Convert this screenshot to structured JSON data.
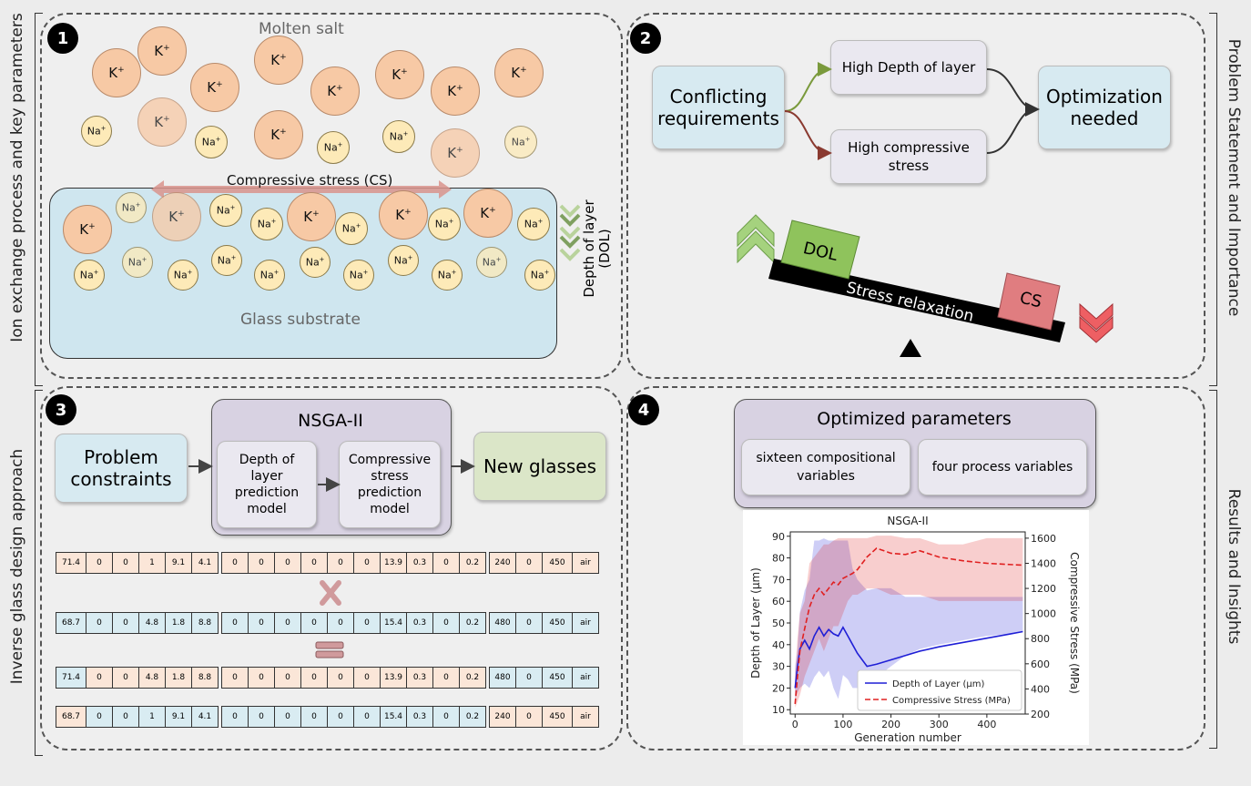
{
  "panel1": {
    "badge": "1",
    "molten_salt": "Molten salt",
    "compressive_stress": "Compressive stress (CS)",
    "glass_substrate": "Glass substrate",
    "dol_label": "Depth of layer (DOL)",
    "k_ion": "K",
    "na_ion": "Na",
    "ion_charge": "+"
  },
  "side_labels": {
    "left_top": "Ion exchange process and key parameters",
    "left_bottom": "Inverse glass design approach",
    "right_top": "Problem Statement and Importance",
    "right_bottom": "Results and Insights"
  },
  "panel2": {
    "badge": "2",
    "conflicting": "Conflicting requirements",
    "high_dol": "High Depth of layer",
    "high_cs": "High compressive stress",
    "optimization": "Optimization needed",
    "dol_block": "DOL",
    "cs_block": "CS",
    "stress_relaxation": "Stress relaxation",
    "colors": {
      "dol_block": "#8fc35c",
      "cs_block": "#e07d80",
      "up_arrow": "#a5d27e",
      "down_arrow": "#ee5f63"
    }
  },
  "panel3": {
    "badge": "3",
    "problem_constraints": "Problem constraints",
    "nsga_title": "NSGA-II",
    "dol_model": "Depth of layer prediction model",
    "cs_model": "Compressive stress prediction model",
    "new_glasses": "New glasses",
    "rows": [
      {
        "colors": "oooooo/oooooooooo/oooo",
        "values": [
          "71.4",
          "0",
          "0",
          "1",
          "9.1",
          "4.1",
          "0",
          "0",
          "0",
          "0",
          "0",
          "0",
          "13.9",
          "0.3",
          "0",
          "0.2",
          "240",
          "0",
          "450",
          "air"
        ]
      },
      {
        "colors": "bbbbbb/bbbbbbbbbb/bbbb",
        "values": [
          "68.7",
          "0",
          "0",
          "4.8",
          "1.8",
          "8.8",
          "0",
          "0",
          "0",
          "0",
          "0",
          "0",
          "15.4",
          "0.3",
          "0",
          "0.2",
          "480",
          "0",
          "450",
          "air"
        ]
      },
      {
        "colors": "oooooo/oooooooooo/bbbb",
        "values": [
          "71.4",
          "0",
          "0",
          "4.8",
          "1.8",
          "8.8",
          "0",
          "0",
          "0",
          "0",
          "0",
          "0",
          "13.9",
          "0.3",
          "0",
          "0.2",
          "480",
          "0",
          "450",
          "air"
        ]
      },
      {
        "colors": "bbbbbb/bbbbbbbbbb/oooo",
        "values": [
          "68.7",
          "0",
          "0",
          "1",
          "9.1",
          "4.1",
          "0",
          "0",
          "0",
          "0",
          "0",
          "0",
          "15.4",
          "0.3",
          "0",
          "0.2",
          "240",
          "0",
          "450",
          "air"
        ]
      }
    ],
    "row_color_blocks": [
      [
        "o",
        "o",
        "o",
        "o"
      ],
      [
        "b",
        "b",
        "b",
        "b"
      ],
      [
        "b",
        "o",
        "o",
        "b"
      ],
      [
        "o",
        "b",
        "b",
        "o"
      ]
    ]
  },
  "panel4": {
    "badge": "4",
    "optimized_params": "Optimized parameters",
    "compositional": "sixteen compositional variables",
    "process": "four process variables"
  },
  "chart_data": {
    "type": "line",
    "title": "NSGA-II",
    "xlabel": "Generation number",
    "ylabel": "Depth of Layer (μm)",
    "y2label": "Compressive Stress (MPa)",
    "xlim": [
      -10,
      480
    ],
    "ylim": [
      8,
      92
    ],
    "y2lim": [
      200,
      1650
    ],
    "xticks": [
      0,
      100,
      200,
      300,
      400
    ],
    "yticks": [
      10,
      20,
      30,
      40,
      50,
      60,
      70,
      80,
      90
    ],
    "y2ticks": [
      200,
      400,
      600,
      800,
      1000,
      1200,
      1400,
      1600
    ],
    "legend": [
      "Depth of Layer (μm)",
      "Compressive Stress (MPa)"
    ],
    "legend_position": "lower-right",
    "series": [
      {
        "name": "Depth of Layer (μm)",
        "color": "#1f1fd6",
        "axis": "left",
        "x": [
          0,
          5,
          10,
          20,
          30,
          40,
          50,
          60,
          70,
          80,
          90,
          100,
          110,
          120,
          130,
          150,
          170,
          200,
          230,
          260,
          300,
          350,
          400,
          450,
          475
        ],
        "y": [
          20,
          30,
          38,
          42,
          38,
          44,
          48,
          44,
          47,
          45,
          44,
          48,
          44,
          40,
          36,
          30,
          31,
          33,
          35,
          37,
          39,
          41,
          43,
          45,
          46
        ],
        "band_low": [
          15,
          18,
          20,
          22,
          20,
          25,
          28,
          25,
          28,
          20,
          15,
          26,
          24,
          20,
          20,
          20,
          25,
          30,
          35,
          38,
          40,
          42,
          44,
          45,
          46
        ],
        "band_high": [
          30,
          38,
          55,
          65,
          70,
          88,
          88,
          89,
          88,
          88,
          88,
          88,
          88,
          75,
          70,
          65,
          66,
          66,
          62,
          62,
          62,
          62,
          62,
          62,
          62
        ]
      },
      {
        "name": "Compressive Stress (MPa)",
        "color": "#e02020",
        "axis": "right",
        "x": [
          0,
          5,
          10,
          20,
          30,
          40,
          50,
          60,
          70,
          80,
          90,
          100,
          110,
          120,
          130,
          150,
          170,
          200,
          230,
          260,
          300,
          350,
          400,
          450,
          475
        ],
        "y": [
          280,
          500,
          700,
          880,
          1050,
          1150,
          1200,
          1150,
          1200,
          1250,
          1230,
          1280,
          1300,
          1320,
          1350,
          1450,
          1520,
          1480,
          1470,
          1500,
          1450,
          1420,
          1400,
          1390,
          1385
        ],
        "band_low": [
          250,
          300,
          350,
          500,
          600,
          700,
          800,
          700,
          800,
          900,
          900,
          1000,
          1100,
          1150,
          1150,
          1200,
          1200,
          1150,
          1150,
          1150,
          1100,
          1100,
          1100,
          1100,
          1100
        ],
        "band_high": [
          500,
          800,
          1000,
          1100,
          1400,
          1450,
          1500,
          1550,
          1550,
          1580,
          1600,
          1600,
          1600,
          1600,
          1600,
          1600,
          1620,
          1620,
          1600,
          1600,
          1550,
          1550,
          1600,
          1600,
          1600
        ]
      }
    ]
  }
}
